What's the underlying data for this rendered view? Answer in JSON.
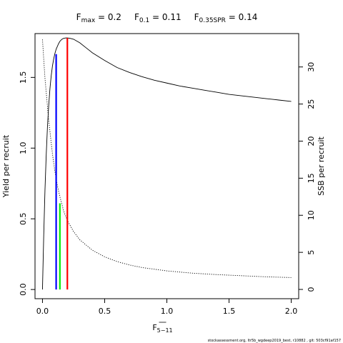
{
  "title_parts": {
    "fmax_label": "F",
    "fmax_sub": "max",
    "fmax_value": " = 0.2",
    "f01_label": "F",
    "f01_sub": "0.1",
    "f01_value": " = 0.11",
    "fspr_label": "F",
    "fspr_sub": "0.35SPR",
    "fspr_value": " = 0.14"
  },
  "footer": "stockassessment.org, ltr5b_wgdeep2019_best, r10882 , git: 503cf91af157",
  "chart_data": {
    "type": "line",
    "xlabel": "F",
    "xlabel_sub": "5−11",
    "ylabel_left": "Yield per recruit",
    "ylabel_right": "SSB per recruit",
    "xlim": [
      -0.06,
      2.06
    ],
    "ylim_left": [
      -0.065,
      1.81
    ],
    "ylim_right": [
      -1.25,
      34.5
    ],
    "x_ticks": [
      0.0,
      0.5,
      1.0,
      1.5,
      2.0
    ],
    "x_tick_labels": [
      "0.0",
      "0.5",
      "1.0",
      "1.5",
      "2.0"
    ],
    "y_left_ticks": [
      0.0,
      0.5,
      1.0,
      1.5
    ],
    "y_left_tick_labels": [
      "0.0",
      "0.5",
      "1.0",
      "1.5"
    ],
    "y_right_ticks": [
      0,
      5,
      10,
      15,
      20,
      25,
      30
    ],
    "y_right_tick_labels": [
      "0",
      "5",
      "10",
      "15",
      "20",
      "25",
      "30"
    ],
    "series": [
      {
        "axis": "left",
        "style": "solid",
        "x": [
          0.0,
          0.01,
          0.02,
          0.03,
          0.04,
          0.05,
          0.06,
          0.07,
          0.08,
          0.09,
          0.1,
          0.11,
          0.12,
          0.13,
          0.14,
          0.15,
          0.16,
          0.17,
          0.18,
          0.19,
          0.2,
          0.22,
          0.25,
          0.3,
          0.35,
          0.4,
          0.5,
          0.6,
          0.7,
          0.8,
          0.9,
          1.0,
          1.1,
          1.2,
          1.3,
          1.4,
          1.5,
          1.6,
          1.7,
          1.8,
          1.9,
          2.0
        ],
        "y": [
          0.0,
          0.38,
          0.7,
          0.95,
          1.15,
          1.3,
          1.42,
          1.51,
          1.58,
          1.63,
          1.67,
          1.7,
          1.72,
          1.74,
          1.755,
          1.765,
          1.772,
          1.776,
          1.778,
          1.779,
          1.779,
          1.777,
          1.77,
          1.745,
          1.71,
          1.675,
          1.62,
          1.57,
          1.535,
          1.505,
          1.48,
          1.46,
          1.44,
          1.425,
          1.41,
          1.395,
          1.38,
          1.37,
          1.36,
          1.35,
          1.34,
          1.33
        ]
      },
      {
        "axis": "right",
        "style": "dotted",
        "x": [
          0.0,
          0.02,
          0.05,
          0.08,
          0.1,
          0.12,
          0.14,
          0.17,
          0.2,
          0.25,
          0.3,
          0.4,
          0.5,
          0.6,
          0.7,
          0.8,
          1.0,
          1.2,
          1.4,
          1.6,
          1.8,
          2.0
        ],
        "y": [
          33.7,
          28.5,
          22.8,
          18.3,
          15.9,
          14.0,
          12.5,
          10.6,
          9.3,
          7.8,
          6.7,
          5.3,
          4.4,
          3.75,
          3.3,
          2.95,
          2.5,
          2.2,
          2.0,
          1.85,
          1.7,
          1.6
        ]
      }
    ],
    "reference_lines": [
      {
        "name": "Fmax",
        "x": 0.2,
        "y": 1.779,
        "color": "#ff0000"
      },
      {
        "name": "F0.1",
        "x": 0.11,
        "y": 1.665,
        "color": "#0000ff"
      },
      {
        "name": "F0.35SPR",
        "x": 0.14,
        "y": 0.61,
        "color": "#00ee00"
      }
    ]
  }
}
